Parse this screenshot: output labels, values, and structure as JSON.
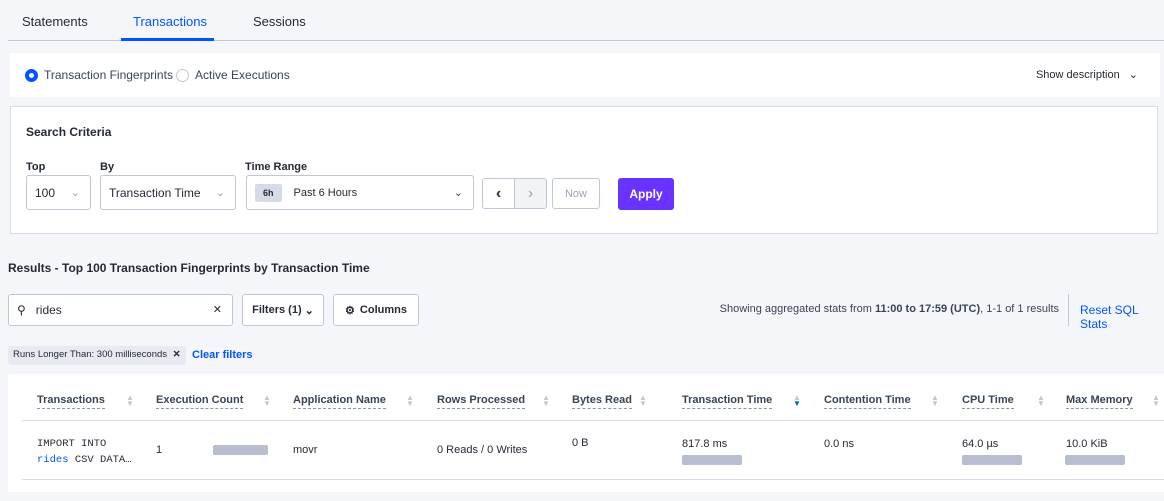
{
  "tabs": [
    {
      "label": "Statements"
    },
    {
      "label": "Transactions",
      "active": true
    },
    {
      "label": "Sessions"
    }
  ],
  "view": {
    "options": [
      "Transaction Fingerprints",
      "Active Executions"
    ],
    "selected": "Transaction Fingerprints",
    "show_description": "Show description"
  },
  "criteria": {
    "title": "Search Criteria",
    "top_label": "Top",
    "top_value": "100",
    "by_label": "By",
    "by_value": "Transaction Time",
    "time_label": "Time Range",
    "time_badge": "6h",
    "time_value": "Past 6 Hours",
    "now": "Now",
    "apply": "Apply"
  },
  "results": {
    "title": "Results - Top 100 Transaction Fingerprints by Transaction Time",
    "search_value": "rides",
    "filters": "Filters (1)",
    "columns": "Columns",
    "summary_pre": "Showing aggregated stats from ",
    "summary_bold": "11:00 to 17:59 (UTC)",
    "summary_post": ", 1-1 of 1 results",
    "reset": "Reset SQL Stats",
    "chip": "Runs Longer Than: 300 milliseconds",
    "clear": "Clear filters"
  },
  "table": {
    "headers": [
      "Transactions",
      "Execution Count",
      "Application Name",
      "Rows Processed",
      "Bytes Read",
      "Transaction Time",
      "Contention Time",
      "CPU Time",
      "Max Memory"
    ],
    "sorted_column": "Transaction Time",
    "sort_direction": "descending",
    "row": {
      "txn_line1": "IMPORT INTO",
      "txn_table": "rides",
      "txn_rest": " CSV DATA…",
      "exec_count": "1",
      "app": "movr",
      "rows": "0 Reads / 0 Writes",
      "bytes": "0 B",
      "txn_time": "817.8 ms",
      "contention": "0.0 ns",
      "cpu": "64.0 µs",
      "mem": "10.0 KiB"
    }
  },
  "colors": {
    "accent": "#0055ff",
    "apply": "#6933ff"
  }
}
